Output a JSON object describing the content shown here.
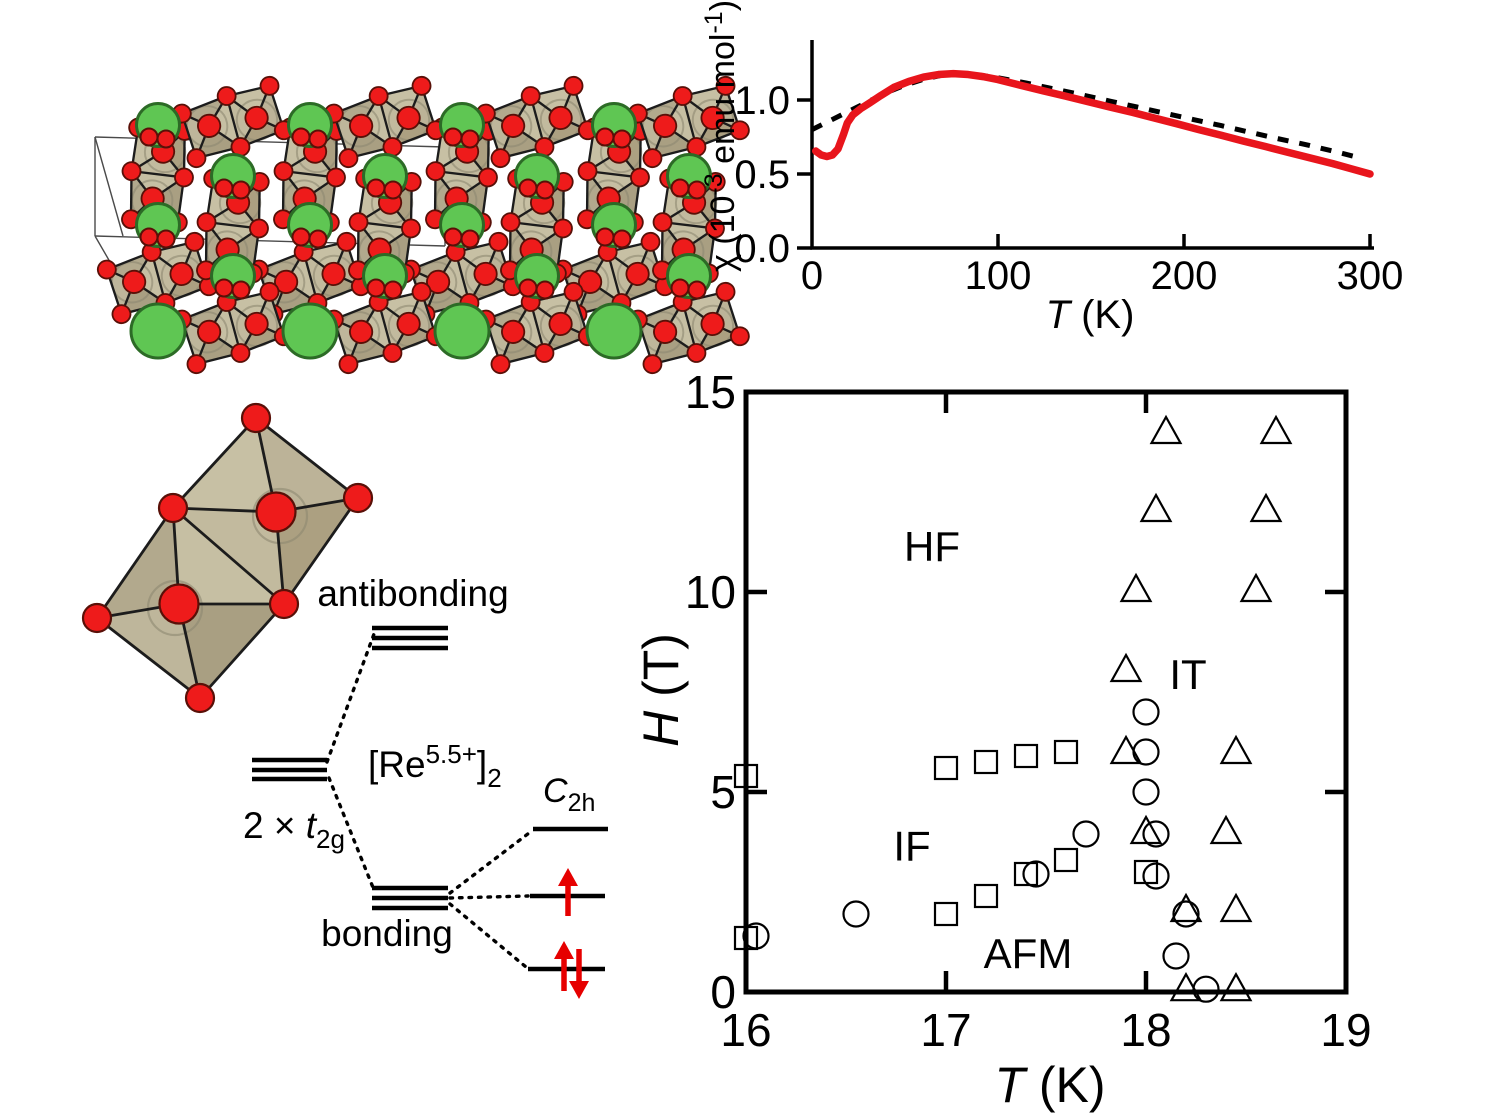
{
  "colors": {
    "atom_red": "#ee1b1b",
    "atom_red_outline": "#591008",
    "green": "#5fc653",
    "green_outline": "#2c6b26",
    "octahedron_faces": [
      "#c7c0a4",
      "#bcb398",
      "#aca081",
      "#c2ba9e",
      "#b2a98d",
      "#beb69b",
      "#a99f82",
      "#c6bfa3"
    ],
    "edge": "#1c1c1c",
    "ghost": "#8e8872",
    "cell_line": "#4a4a4a",
    "curve_red": "#e8151c",
    "curve_dash": "#000000",
    "spin_arrow_red": "#e60000"
  },
  "mo": {
    "antibonding": "antibonding",
    "bonding": "bonding",
    "t2g": {
      "pre": "2 × ",
      "it": "t",
      "sub": "2g"
    },
    "re": {
      "p1": "[Re",
      "sup": "5.5+",
      "p2": "]",
      "sub": "2"
    },
    "c2h": {
      "it": "C",
      "sub": "2h"
    }
  },
  "chart_data": [
    {
      "id": "susceptibility",
      "type": "line",
      "title": "",
      "xlabel": "T (K)",
      "ylabel": "χ (10⁻³ emu mol⁻¹)",
      "xlabel_parts": {
        "it": "T",
        "rest": " (K)"
      },
      "ylabel_parts": {
        "p1": "χ (10",
        "sup1": "-3",
        "p2": " emu mol",
        "sup2": "-1",
        "p3": ")"
      },
      "xlim": [
        0,
        303
      ],
      "ylim": [
        0,
        1.43
      ],
      "grid": false,
      "legend": "none",
      "xticks": [
        0,
        100,
        200,
        300
      ],
      "xticklabels": [
        "0",
        "100",
        "200",
        "300"
      ],
      "yticks": [
        0,
        0.5,
        1.0
      ],
      "yticklabels": [
        "0.0",
        "0.5",
        "1.0"
      ],
      "series": [
        {
          "name": "chi-measured",
          "style": "solid",
          "color": "#e8151c",
          "x": [
            2,
            5,
            8,
            11,
            14,
            17,
            19,
            22,
            26,
            31,
            37,
            44,
            52,
            60,
            68,
            76,
            84,
            92,
            100,
            112,
            124,
            136,
            148,
            160,
            172,
            184,
            196,
            208,
            220,
            232,
            244,
            256,
            268,
            280,
            290,
            300
          ],
          "y": [
            0.655,
            0.628,
            0.618,
            0.628,
            0.67,
            0.77,
            0.845,
            0.9,
            0.94,
            0.98,
            1.03,
            1.085,
            1.125,
            1.155,
            1.172,
            1.178,
            1.172,
            1.158,
            1.138,
            1.1,
            1.063,
            1.027,
            0.99,
            0.953,
            0.917,
            0.878,
            0.84,
            0.8,
            0.762,
            0.722,
            0.685,
            0.646,
            0.608,
            0.57,
            0.535,
            0.5
          ]
        },
        {
          "name": "chi-fit-dashed",
          "style": "dashed",
          "color": "#000000",
          "x": [
            0,
            8,
            16,
            24,
            32,
            40,
            50,
            60,
            70,
            80,
            90,
            100,
            115,
            130,
            145,
            160,
            175,
            190,
            205,
            220,
            235,
            250,
            265,
            280,
            296
          ],
          "y": [
            0.8,
            0.85,
            0.9,
            0.95,
            1.0,
            1.05,
            1.1,
            1.14,
            1.168,
            1.175,
            1.168,
            1.15,
            1.115,
            1.075,
            1.035,
            0.993,
            0.952,
            0.91,
            0.868,
            0.827,
            0.783,
            0.74,
            0.7,
            0.655,
            0.605
          ]
        }
      ]
    },
    {
      "id": "phase-diagram",
      "type": "scatter",
      "title": "",
      "xlabel": "T (K)",
      "ylabel": "H (T)",
      "xlabel_parts": {
        "it": "T",
        "rest": " (K)"
      },
      "ylabel_parts": {
        "it": "H",
        "rest": " (T)"
      },
      "xlim": [
        16,
        19
      ],
      "ylim": [
        0,
        15
      ],
      "grid": false,
      "legend": "none",
      "xticks": [
        16,
        17,
        18,
        19
      ],
      "xticklabels": [
        "16",
        "17",
        "18",
        "19"
      ],
      "yticks": [
        0,
        5,
        10,
        15
      ],
      "yticklabels": [
        "0",
        "5",
        "10",
        "15"
      ],
      "series": [
        {
          "name": "square-boundary",
          "marker": "square",
          "points": [
            [
              16.0,
              5.4
            ],
            [
              17.0,
              5.6
            ],
            [
              17.2,
              5.75
            ],
            [
              17.4,
              5.9
            ],
            [
              17.6,
              6.0
            ],
            [
              16.0,
              1.35
            ],
            [
              17.0,
              1.95
            ],
            [
              17.2,
              2.4
            ],
            [
              17.4,
              2.95
            ],
            [
              17.6,
              3.3
            ],
            [
              18.0,
              3.0
            ]
          ]
        },
        {
          "name": "circle-boundary",
          "marker": "circle",
          "points": [
            [
              16.05,
              1.4
            ],
            [
              16.55,
              1.95
            ],
            [
              17.45,
              2.95
            ],
            [
              17.7,
              3.95
            ],
            [
              18.0,
              7.0
            ],
            [
              18.0,
              6.0
            ],
            [
              18.0,
              5.0
            ],
            [
              18.05,
              3.95
            ],
            [
              18.05,
              2.9
            ],
            [
              18.2,
              1.95
            ],
            [
              18.15,
              0.9
            ],
            [
              18.3,
              0.07
            ]
          ]
        },
        {
          "name": "triangle-boundary",
          "marker": "triangle",
          "points": [
            [
              18.1,
              14
            ],
            [
              18.65,
              14
            ],
            [
              18.05,
              12.05
            ],
            [
              18.6,
              12.05
            ],
            [
              17.95,
              10.05
            ],
            [
              18.55,
              10.05
            ],
            [
              17.9,
              8.05
            ],
            [
              17.9,
              6.0
            ],
            [
              18.45,
              6.0
            ],
            [
              18.0,
              4.0
            ],
            [
              18.4,
              4.0
            ],
            [
              18.2,
              2.05
            ],
            [
              18.45,
              2.05
            ],
            [
              18.2,
              0.07
            ],
            [
              18.45,
              0.07
            ]
          ]
        }
      ],
      "annotations": [
        {
          "text": "HF",
          "x": 16.93,
          "y": 11.15
        },
        {
          "text": "IT",
          "x": 18.21,
          "y": 7.95
        },
        {
          "text": "IF",
          "x": 16.83,
          "y": 3.66
        },
        {
          "text": "AFM",
          "x": 17.41,
          "y": 0.97
        }
      ]
    }
  ]
}
